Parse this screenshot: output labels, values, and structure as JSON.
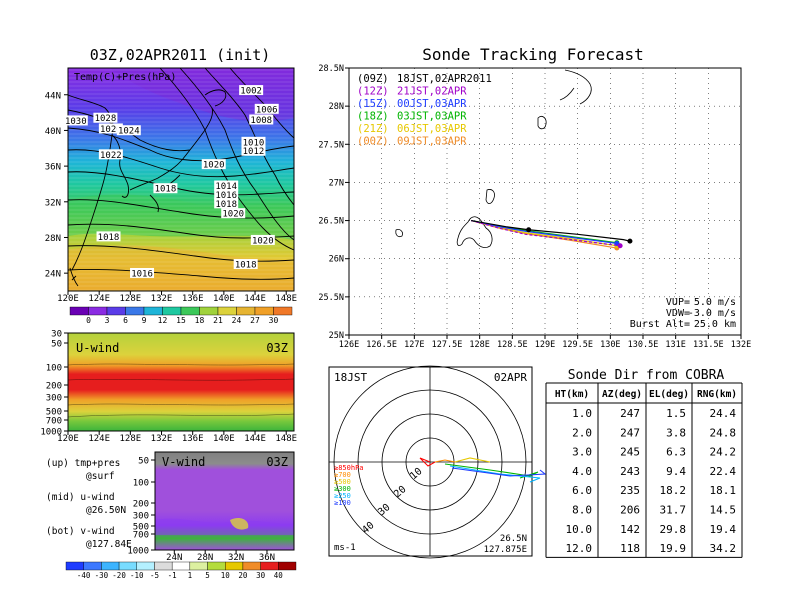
{
  "left_map": {
    "title": "03Z,02APR2011 (init)",
    "label": "Temp(C)+Pres(hPa)",
    "lat_ticks": [
      "44N",
      "40N",
      "36N",
      "32N",
      "28N",
      "24N"
    ],
    "lon_ticks": [
      "120E",
      "124E",
      "128E",
      "132E",
      "136E",
      "140E",
      "144E",
      "148E"
    ],
    "isobar_labels": [
      {
        "v": "1002",
        "lon": 143.5,
        "lat": 44.3
      },
      {
        "v": "1006",
        "lon": 145.5,
        "lat": 42.2
      },
      {
        "v": "1008",
        "lon": 144.8,
        "lat": 41.0
      },
      {
        "v": "1030",
        "lon": 121.0,
        "lat": 40.9
      },
      {
        "v": "1028",
        "lon": 124.8,
        "lat": 41.2
      },
      {
        "v": "1026",
        "lon": 125.5,
        "lat": 40.0
      },
      {
        "v": "1024",
        "lon": 127.8,
        "lat": 39.8
      },
      {
        "v": "1010",
        "lon": 143.8,
        "lat": 38.5
      },
      {
        "v": "1012",
        "lon": 143.8,
        "lat": 37.5
      },
      {
        "v": "1022",
        "lon": 125.5,
        "lat": 37.1
      },
      {
        "v": "1020",
        "lon": 138.7,
        "lat": 36.0
      },
      {
        "v": "1018",
        "lon": 132.5,
        "lat": 33.3
      },
      {
        "v": "1014",
        "lon": 140.3,
        "lat": 33.6
      },
      {
        "v": "1016",
        "lon": 140.3,
        "lat": 32.6
      },
      {
        "v": "1018",
        "lon": 140.3,
        "lat": 31.6
      },
      {
        "v": "1020",
        "lon": 141.2,
        "lat": 30.5
      },
      {
        "v": "1018",
        "lon": 125.2,
        "lat": 27.9
      },
      {
        "v": "1020",
        "lon": 145.0,
        "lat": 27.5
      },
      {
        "v": "1018",
        "lon": 142.8,
        "lat": 24.8
      },
      {
        "v": "1016",
        "lon": 129.5,
        "lat": 23.8
      }
    ],
    "colorbar": [
      "0",
      "3",
      "6",
      "9",
      "12",
      "15",
      "18",
      "21",
      "24",
      "27",
      "30"
    ]
  },
  "u_wind": {
    "label": "U-wind",
    "time": "03Z",
    "p_ticks": [
      "30",
      "50",
      "100",
      "200",
      "300",
      "500",
      "700",
      "1000"
    ],
    "lon_ticks": [
      "120E",
      "124E",
      "128E",
      "132E",
      "136E",
      "140E",
      "144E",
      "148E"
    ]
  },
  "v_wind": {
    "label": "V-wind",
    "time": "03Z",
    "p_ticks": [
      "50",
      "100",
      "200",
      "300",
      "500",
      "700",
      "1000"
    ],
    "lat_ticks": [
      "24N",
      "28N",
      "32N",
      "36N"
    ],
    "colorbar": [
      "-40",
      "-30",
      "-20",
      "-10",
      "-5",
      "-1",
      "1",
      "5",
      "10",
      "20",
      "30",
      "40"
    ]
  },
  "legend_notes": [
    {
      "a": "(up) tmp+pres",
      "b": "@surf"
    },
    {
      "a": "(mid) u-wind",
      "b": "@26.50N"
    },
    {
      "a": "(bot) v-wind",
      "b": "@127.84E"
    }
  ],
  "track": {
    "title": "Sonde Tracking Forecast",
    "lat_ticks": [
      "28.5N",
      "28N",
      "27.5N",
      "27N",
      "26.5N",
      "26N",
      "25.5N",
      "25N"
    ],
    "lon_ticks": [
      "126E",
      "126.5E",
      "127E",
      "127.5E",
      "128E",
      "128.5E",
      "129E",
      "129.5E",
      "130E",
      "130.5E",
      "131E",
      "131.5E",
      "132E"
    ],
    "legend": [
      {
        "a": "(09Z)",
        "b": "18JST,02APR2011",
        "color": "#000000"
      },
      {
        "a": "(12Z)",
        "b": "21JST,02APR",
        "color": "#a000c8"
      },
      {
        "a": "(15Z)",
        "b": "00JST,03APR",
        "color": "#1e3cff"
      },
      {
        "a": "(18Z)",
        "b": "03JST,03APR",
        "color": "#00b400"
      },
      {
        "a": "(21Z)",
        "b": "06JST,03APR",
        "color": "#e6c800"
      },
      {
        "a": "(00Z)",
        "b": "09JST,03APR",
        "color": "#f08c28"
      }
    ],
    "params": [
      {
        "k": "VUP=",
        "v": "5.0 m/s"
      },
      {
        "k": "VDW=",
        "v": "-3.0 m/s"
      },
      {
        "k": "Burst Alt=",
        "v": "25.0 km"
      }
    ]
  },
  "chart_data": [
    {
      "type": "line",
      "title": "Sonde Tracking Forecast",
      "xlim": [
        126,
        132
      ],
      "ylim": [
        25,
        28.5
      ],
      "series": [
        {
          "name": "(09Z) 18JST,02APR2011",
          "color": "#000000",
          "x": [
            127.87,
            128.4,
            128.75,
            129.5,
            130.2,
            130.3
          ],
          "y": [
            26.5,
            26.42,
            26.38,
            26.32,
            26.25,
            26.23
          ]
        },
        {
          "name": "(12Z) 21JST,02APR",
          "color": "#a000c8",
          "x": [
            127.87,
            128.3,
            128.7,
            129.4,
            130.15
          ],
          "y": [
            26.5,
            26.4,
            26.32,
            26.25,
            26.17
          ]
        },
        {
          "name": "(15Z) 00JST,03APR",
          "color": "#1e3cff",
          "x": [
            127.87,
            128.3,
            128.7,
            129.4,
            130.1
          ],
          "y": [
            26.5,
            26.42,
            26.36,
            26.28,
            26.2
          ]
        },
        {
          "name": "(18Z) 03JST,03APR",
          "color": "#00b400",
          "x": [
            127.87,
            128.3,
            128.7,
            129.4,
            130.1
          ],
          "y": [
            26.5,
            26.43,
            26.37,
            26.29,
            26.21
          ]
        },
        {
          "name": "(21Z) 06JST,03APR",
          "color": "#e6c800",
          "x": [
            127.87,
            128.3,
            128.7,
            129.4,
            130.1
          ],
          "y": [
            26.5,
            26.41,
            26.34,
            26.26,
            26.17
          ]
        },
        {
          "name": "(00Z) 09JST,03APR",
          "color": "#f08c28",
          "x": [
            127.87,
            128.3,
            128.7,
            129.4,
            130.1
          ],
          "y": [
            26.5,
            26.4,
            26.33,
            26.24,
            26.14
          ]
        }
      ]
    },
    {
      "type": "table",
      "title": "Sonde Dir from COBRA",
      "columns": [
        "HT(km)",
        "AZ(deg)",
        "EL(deg)",
        "RNG(km)"
      ],
      "rows": [
        [
          "1.0",
          "247",
          "1.5",
          "24.4"
        ],
        [
          "2.0",
          "247",
          "3.8",
          "24.8"
        ],
        [
          "3.0",
          "245",
          "6.3",
          "24.2"
        ],
        [
          "4.0",
          "243",
          "9.4",
          "22.4"
        ],
        [
          "6.0",
          "235",
          "18.2",
          "18.1"
        ],
        [
          "8.0",
          "206",
          "31.7",
          "14.5"
        ],
        [
          "10.0",
          "142",
          "29.8",
          "19.4"
        ],
        [
          "12.0",
          "118",
          "19.9",
          "34.2"
        ]
      ]
    }
  ],
  "hodo": {
    "left": "18JST",
    "right": "02APR",
    "ring_labels": [
      "10",
      "20",
      "30",
      "40"
    ],
    "levels": [
      {
        "t": "≥850hPa",
        "c": "#ff0000"
      },
      {
        "t": "≥700",
        "c": "#ff8c00"
      },
      {
        "t": "≥500",
        "c": "#e6c800"
      },
      {
        "t": "≥300",
        "c": "#00b400"
      },
      {
        "t": "≥250",
        "c": "#00b4ff"
      },
      {
        "t": "≥100",
        "c": "#1e3cff"
      }
    ],
    "unit": "ms-1",
    "pos_lat": "26.5N",
    "pos_lon": "127.875E"
  }
}
